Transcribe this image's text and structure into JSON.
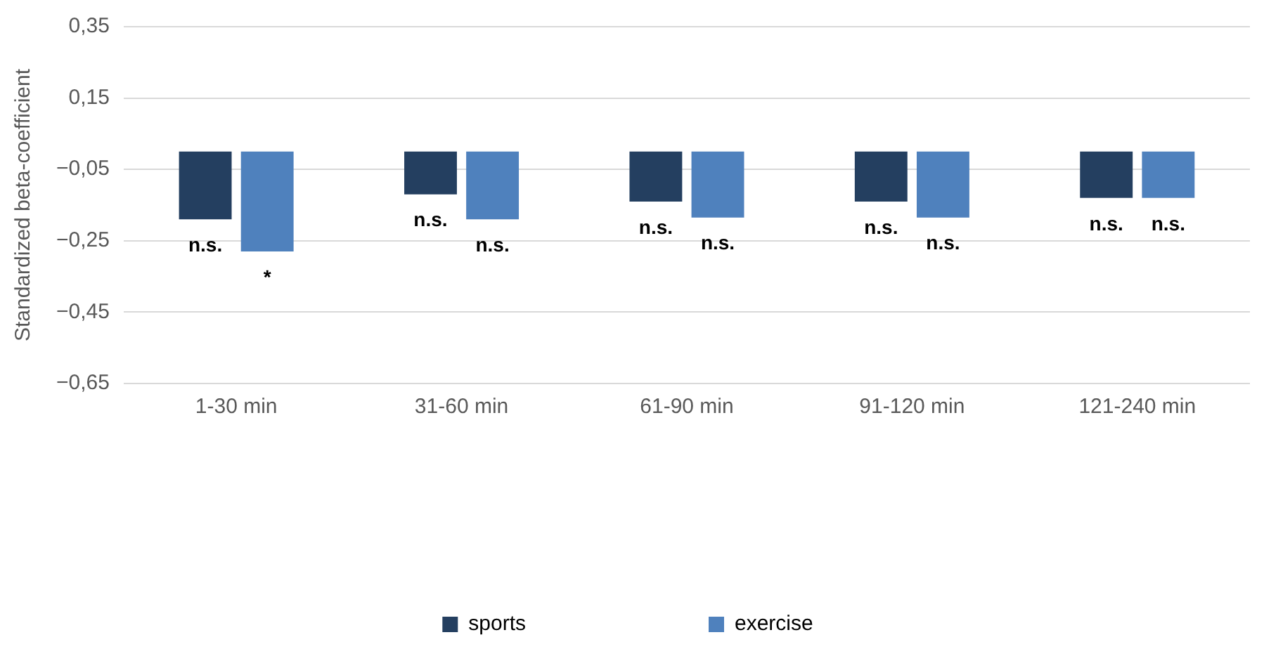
{
  "chart_data": {
    "type": "bar",
    "ylabel": "Standardized beta-coefficient",
    "categories": [
      "1-30 min",
      "31-60 min",
      "61-90 min",
      "91-120 min",
      "121-240 min"
    ],
    "series": [
      {
        "name": "sports",
        "color": "#243f60",
        "values": [
          -0.19,
          -0.12,
          -0.14,
          -0.14,
          -0.13
        ],
        "value_labels": [
          "n.s.",
          "n.s.",
          "n.s.",
          "n.s.",
          "n.s."
        ]
      },
      {
        "name": "exercise",
        "color": "#4f81bd",
        "values": [
          -0.28,
          -0.19,
          -0.185,
          -0.185,
          -0.13
        ],
        "value_labels": [
          "*",
          "n.s.",
          "n.s.",
          "n.s.",
          "n.s."
        ]
      }
    ],
    "ylim": [
      -0.65,
      0.35
    ],
    "yticks": [
      {
        "value": -0.65,
        "label": "−0,65"
      },
      {
        "value": -0.45,
        "label": "−0,45"
      },
      {
        "value": -0.25,
        "label": "−0,25"
      },
      {
        "value": -0.05,
        "label": "−0,05"
      },
      {
        "value": 0.15,
        "label": "0,15"
      },
      {
        "value": 0.35,
        "label": "0,35"
      }
    ],
    "grid": "y",
    "legend": "bottom"
  }
}
